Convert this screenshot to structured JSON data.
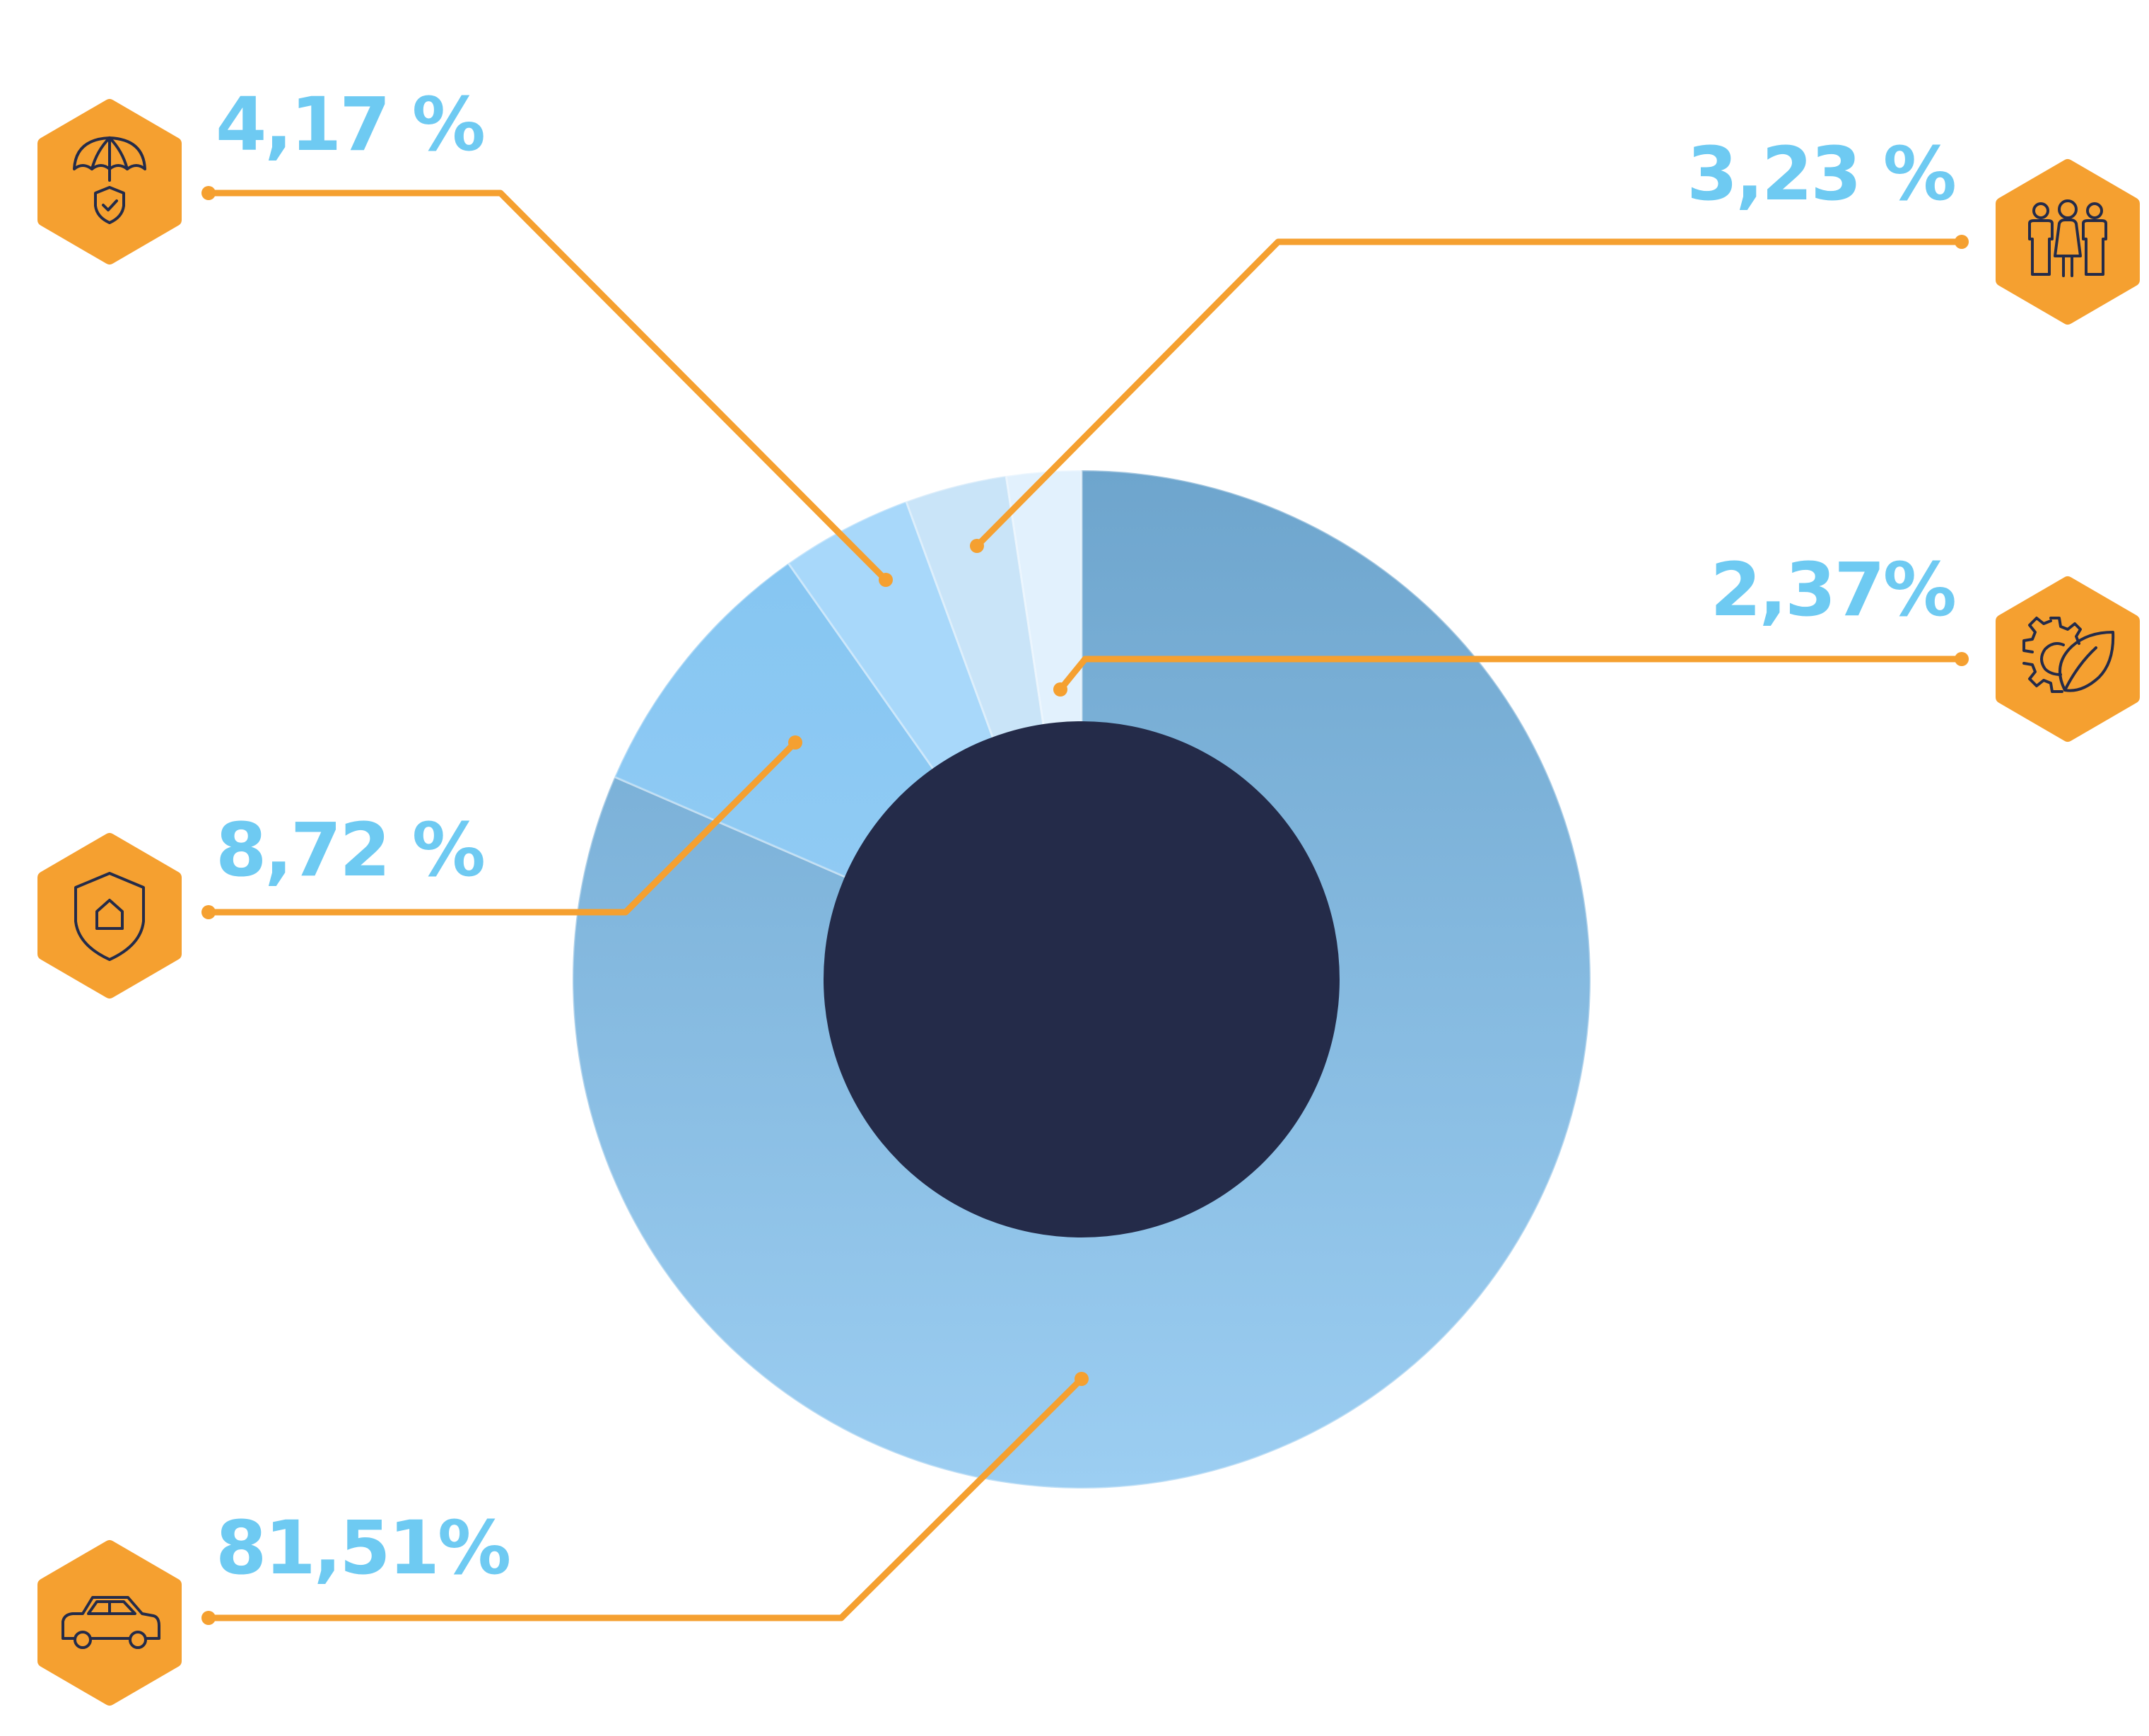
{
  "colors": {
    "accent": "#f5a030",
    "label": "#6ecaf2",
    "center": "#242b49",
    "icon_stroke": "#242b49"
  },
  "chart_data": {
    "type": "pie",
    "variant": "donut",
    "title": "",
    "slices": [
      {
        "label": "81,51%",
        "value": 81.51,
        "icon": "car-icon",
        "color_top": "#6ea5cd",
        "color_bottom": "#9ccef2"
      },
      {
        "label": "8,72 %",
        "value": 8.72,
        "icon": "house-shield-icon",
        "color_top": "#86c6f2",
        "color_bottom": "#93ccf4"
      },
      {
        "label": "4,17 %",
        "value": 4.17,
        "icon": "umbrella-shield-icon",
        "color_top": "#a8d8fa",
        "color_bottom": "#a8d8fa"
      },
      {
        "label": "3,23 %",
        "value": 3.23,
        "icon": "family-icon",
        "color_top": "#c9e4f8",
        "color_bottom": "#c9e4f8"
      },
      {
        "label": "2,37%",
        "value": 2.37,
        "icon": "eco-gear-leaf-icon",
        "color_top": "#e2f1fd",
        "color_bottom": "#e2f1fd"
      }
    ]
  }
}
